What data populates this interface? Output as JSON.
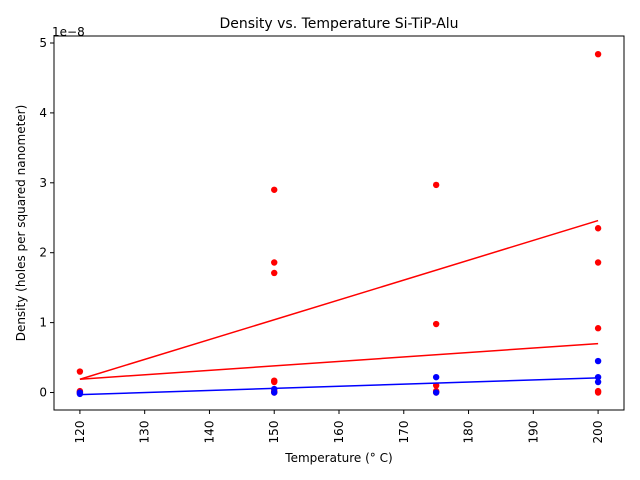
{
  "chart_data": {
    "type": "scatter",
    "title": "Density vs. Temperature Si-TiP-Alu",
    "xlabel": "Temperature (° C)",
    "ylabel": "Density (holes per squared nanometer)",
    "offset_label": "1e−8",
    "xlim": [
      116.0,
      204.0
    ],
    "ylim": [
      -0.25,
      5.1
    ],
    "x_ticks": [
      120,
      130,
      140,
      150,
      160,
      170,
      180,
      190,
      200
    ],
    "y_ticks": [
      0,
      1,
      2,
      3,
      4,
      5
    ],
    "y_scale_exponent": -8,
    "grid": false,
    "series": [
      {
        "color": "#ff0000",
        "points": [
          [
            120,
            0.3
          ],
          [
            120,
            0.02
          ],
          [
            120,
            0.0
          ],
          [
            120,
            -0.01
          ],
          [
            150,
            2.9
          ],
          [
            150,
            1.86
          ],
          [
            150,
            1.71
          ],
          [
            150,
            0.17
          ],
          [
            150,
            0.15
          ],
          [
            150,
            0.02
          ],
          [
            150,
            0.0
          ],
          [
            175,
            2.97
          ],
          [
            175,
            0.98
          ],
          [
            175,
            0.1
          ],
          [
            175,
            0.02
          ],
          [
            175,
            0.0
          ],
          [
            200,
            4.84
          ],
          [
            200,
            2.35
          ],
          [
            200,
            1.86
          ],
          [
            200,
            0.92
          ],
          [
            200,
            0.02
          ],
          [
            200,
            0.0
          ]
        ],
        "fit_lines": [
          [
            [
              120,
              0.19
            ],
            [
              200,
              2.46
            ]
          ],
          [
            [
              120,
              0.19
            ],
            [
              200,
              0.7
            ]
          ]
        ]
      },
      {
        "color": "#0000ff",
        "points": [
          [
            120,
            -0.02
          ],
          [
            120,
            0.0
          ],
          [
            150,
            0.05
          ],
          [
            150,
            0.0
          ],
          [
            175,
            0.22
          ],
          [
            175,
            0.0
          ],
          [
            200,
            0.45
          ],
          [
            200,
            0.22
          ],
          [
            200,
            0.15
          ]
        ],
        "fit_lines": [
          [
            [
              120,
              -0.03
            ],
            [
              200,
              0.21
            ]
          ]
        ]
      }
    ]
  }
}
